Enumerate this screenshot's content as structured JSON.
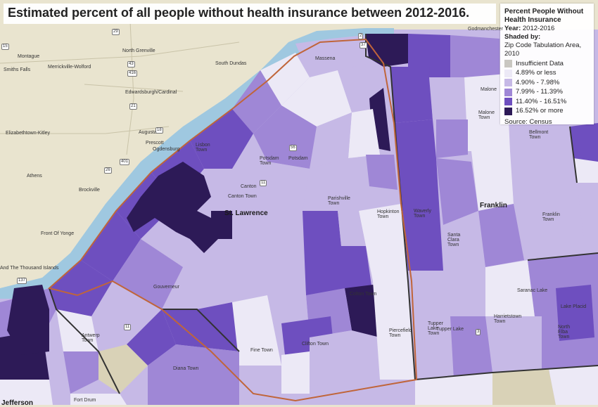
{
  "title": "Estimated percent of all people without health insurance between 2012-2016.",
  "legend": {
    "title": "Percent People Without Health Insurance",
    "year_label": "Year:",
    "year": "2012-2016",
    "shaded_by_label": "Shaded by:",
    "shaded_by": "Zip Code Tabulation Area, 2010",
    "items": [
      {
        "label": "Insufficient Data",
        "color": "#c9c7c1"
      },
      {
        "label": "4.89% or less",
        "color": "#ece9f6"
      },
      {
        "label": "4.90% - 7.98%",
        "color": "#c6b9e6"
      },
      {
        "label": "7.99% - 11.39%",
        "color": "#9f87d6"
      },
      {
        "label": "11.40% - 16.51%",
        "color": "#6e4fbf"
      },
      {
        "label": "16.52% or more",
        "color": "#2d1a57"
      }
    ],
    "source": "Source: Census"
  },
  "colors": {
    "land": "#e9e4cf",
    "water": "#9fc8e0",
    "county_outline": "#c0653a",
    "boundary": "#333333"
  },
  "places": {
    "st_lawrence": "St. Lawrence",
    "franklin": "Franklin",
    "jefferson": "Jefferson",
    "montague": "Montague",
    "smiths_falls": "Smiths Falls",
    "merrickville": "Merrickville-Wolford",
    "north_grenville": "North Grenville",
    "south_dundas": "South Dundas",
    "edwardsburgh": "Edwardsburgh/Cardinal",
    "augusta": "Augusta",
    "prescott": "Prescott",
    "ogdensburg": "Ogdensburg",
    "elizabethtown": "Elizabethtown-Kitley",
    "athens": "Athens",
    "brockville": "Brockville",
    "front_of_yonge": "Front Of Yonge",
    "thousand_islands": "And The Thousand Islands",
    "massena": "Massena",
    "godmanchester": "Godmanchester",
    "malone": "Malone",
    "malone_town": "Malone Town",
    "bellmont_town": "Bellmont Town",
    "lisbon_town": "Lisbon Town",
    "potsdam_town": "Potsdam Town",
    "potsdam": "Potsdam",
    "canton": "Canton",
    "canton_town": "Canton Town",
    "parishville_town": "Parishville Town",
    "hopkinton_town": "Hopkinton Town",
    "waverly_town": "Waverly Town",
    "santa_clara_town": "Santa Clara Town",
    "franklin_town": "Franklin Town",
    "gouverneur": "Gouverneur",
    "colton_town": "Colton Town",
    "piercefield_town": "Piercefield Town",
    "tupper_lake_town": "Tupper Lake Town",
    "tupper_lake": "Tupper Lake",
    "harrietstown_town": "Harrietstown Town",
    "saranac_lake": "Saranac Lake",
    "lake_placid": "Lake Placid",
    "north_elba_town": "North Elba Town",
    "fine_town": "Fine Town",
    "clifton_town": "Clifton Town",
    "antwerp_town": "Antwerp Town",
    "diana_town": "Diana Town",
    "fort_drum": "Fort Drum"
  },
  "routes": {
    "r15": "15",
    "r416": "416",
    "r43": "43",
    "r21": "21",
    "r18": "18",
    "r401": "401",
    "r26": "26",
    "r29": "29",
    "r137": "137",
    "r2": "2",
    "r37": "37",
    "r56": "56",
    "r11": "11",
    "r11b": "11",
    "r3": "3"
  }
}
